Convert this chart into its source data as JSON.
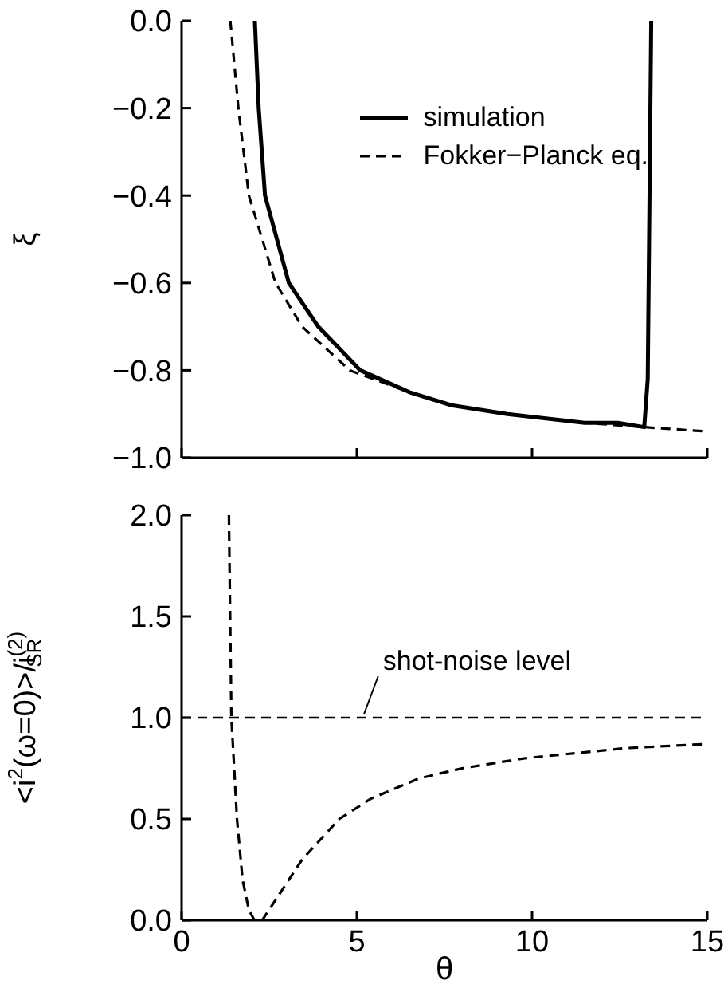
{
  "chart_data": [
    {
      "type": "line",
      "ylabel": "ξ",
      "xlim": [
        0,
        15
      ],
      "xticks": [
        0,
        5,
        10,
        15
      ],
      "ylim": [
        -1,
        0
      ],
      "yticks": [
        {
          "value": 0,
          "label": "0.0"
        },
        -0.2,
        -0.4,
        -0.6,
        -0.8,
        {
          "value": -1,
          "label": "−1.0"
        }
      ],
      "tick_labels": "y",
      "legend": "top right",
      "marker": "none",
      "grid": false,
      "series": [
        {
          "name": "simulation",
          "color": "#000000",
          "line_style": "solid",
          "x": [
            2.09,
            2.2,
            2.38,
            3.06,
            3.9,
            5.1,
            6.5,
            7.7,
            9.3,
            11.5,
            12.45,
            13.2,
            13.3,
            13.4
          ],
          "values": [
            0,
            -0.2,
            -0.4,
            -0.6,
            -0.7,
            -0.8,
            -0.85,
            -0.88,
            -0.9,
            -0.92,
            -0.92,
            -0.93,
            -0.82,
            0
          ]
        },
        {
          "name": "Fokker−Planck eq.",
          "color": "#000000",
          "line_style": "dashed",
          "x": [
            1.39,
            1.62,
            1.92,
            2.68,
            3.44,
            4.8,
            6.5,
            7.7,
            9.3,
            11.5,
            13.2,
            15
          ],
          "values": [
            0,
            -0.2,
            -0.4,
            -0.6,
            -0.7,
            -0.8,
            -0.85,
            -0.88,
            -0.9,
            -0.92,
            -0.93,
            -0.94
          ]
        }
      ]
    },
    {
      "type": "line",
      "xlabel": "θ",
      "ylabel": "<i$^{2}$(ω=0)>/i$^{(2)}$$_{SR}$",
      "xlim": [
        0,
        15
      ],
      "xticks": [
        0,
        5,
        10,
        15
      ],
      "ylim": [
        0,
        2
      ],
      "yticks": [
        {
          "value": 0,
          "label": "0.0"
        },
        {
          "value": 0.5,
          "label": "0.5"
        },
        {
          "value": 1,
          "label": "1.0"
        },
        {
          "value": 1.5,
          "label": "1.5"
        },
        {
          "value": 2,
          "label": "2.0"
        }
      ],
      "legend": false,
      "marker": "none",
      "grid": false,
      "ref_lines": [
        {
          "axis": "y",
          "value": 1,
          "color": "#000000",
          "line_style": "dashed"
        }
      ],
      "annotations": [
        {
          "text": "shot-noise level",
          "x": 5.2,
          "y": 1
        }
      ],
      "series": [
        {
          "color": "#000000",
          "line_style": "dashed",
          "x": [
            1.35,
            1.42,
            1.58,
            1.74,
            1.92,
            2.08,
            2.3,
            2.68,
            3.44,
            4.5,
            5.4,
            6.77,
            8,
            9.8,
            12.7,
            15
          ],
          "values": [
            2,
            1,
            0.5,
            0.2,
            0.05,
            0,
            0,
            0.1,
            0.3,
            0.5,
            0.6,
            0.7,
            0.75,
            0.8,
            0.85,
            0.87
          ]
        }
      ]
    }
  ]
}
